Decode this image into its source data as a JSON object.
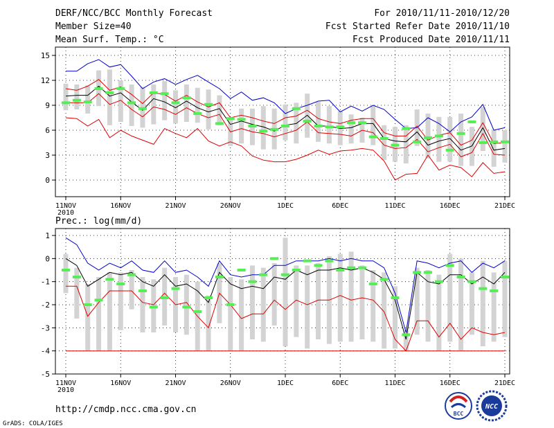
{
  "header": {
    "title_left": "DERF/NCC/BCC Monthly Forecast",
    "member_size": "Member Size=40",
    "variable": "Mean Surf. Temp.: °C",
    "period": "For 2010/11/11-2010/12/20",
    "started": "Fcst Started Refer Date 2010/11/10",
    "produced": "Fcst Produced Date 2010/11/11"
  },
  "footer": {
    "url": "http://cmdp.ncc.cma.gov.cn",
    "credit": "GrADS: COLA/IGES",
    "logo_bcc_text": "BCC",
    "logo_ncc_text": "NCC"
  },
  "colors": {
    "box": "#d3d3d3",
    "median": "#55ee55",
    "mean": "#000000",
    "max_line": "#0000cc",
    "min_line": "#dd0000",
    "frame": "#000000",
    "grid": "#000000"
  },
  "chart_data": [
    {
      "type": "box",
      "title": "Mean Surf. Temp.: °C",
      "x_tick_labels": [
        "11NOV",
        "16NOV",
        "21NOV",
        "26NOV",
        "1DEC",
        "6DEC",
        "11DEC",
        "16DEC",
        "21DEC"
      ],
      "x_tick_day_index": [
        0,
        5,
        10,
        15,
        20,
        25,
        30,
        35,
        40
      ],
      "year_label": "2010",
      "ylim": [
        -2,
        16
      ],
      "yticks": [
        0,
        3,
        6,
        9,
        12,
        15
      ],
      "grid": true,
      "series": [
        {
          "name": "max",
          "values": [
            13.1,
            13.1,
            14.0,
            14.5,
            13.6,
            13.9,
            12.5,
            11.0,
            11.8,
            12.2,
            11.5,
            12.1,
            12.6,
            11.8,
            11.0,
            9.8,
            10.6,
            9.6,
            9.9,
            9.3,
            8.0,
            8.6,
            9.0,
            9.5,
            9.6,
            8.2,
            8.9,
            8.3,
            9.0,
            8.5,
            7.3,
            6.2,
            6.3,
            7.5,
            6.8,
            5.8,
            7.0,
            7.6,
            9.1,
            6.0,
            6.3
          ]
        },
        {
          "name": "mean_plus",
          "values": [
            11.0,
            10.8,
            11.3,
            12.1,
            10.8,
            11.2,
            10.3,
            9.2,
            10.5,
            10.3,
            9.5,
            10.2,
            9.4,
            8.8,
            9.3,
            7.5,
            7.8,
            7.5,
            7.1,
            6.8,
            7.5,
            7.7,
            8.4,
            7.4,
            7.0,
            6.8,
            7.2,
            7.4,
            7.4,
            5.7,
            5.3,
            5.3,
            6.5,
            4.8,
            5.4,
            5.7,
            4.2,
            4.8,
            6.9,
            4.4,
            4.5
          ]
        },
        {
          "name": "mean",
          "values": [
            10.1,
            10.2,
            10.2,
            11.3,
            10.1,
            10.5,
            9.4,
            8.4,
            9.8,
            9.4,
            8.7,
            9.5,
            8.7,
            8.2,
            8.6,
            6.7,
            7.1,
            6.7,
            6.4,
            5.9,
            6.6,
            6.8,
            7.8,
            6.5,
            6.5,
            6.2,
            6.3,
            6.8,
            6.8,
            5.0,
            4.7,
            4.6,
            5.8,
            4.2,
            4.7,
            5.0,
            3.6,
            4.1,
            6.3,
            3.6,
            3.8
          ]
        },
        {
          "name": "mean_minus",
          "values": [
            9.3,
            9.3,
            9.3,
            10.4,
            9.1,
            9.6,
            8.5,
            7.6,
            8.8,
            8.5,
            7.9,
            8.7,
            8.0,
            7.5,
            7.9,
            5.8,
            6.2,
            5.8,
            5.6,
            5.2,
            5.6,
            6.0,
            7.0,
            5.7,
            5.6,
            5.5,
            5.3,
            6.0,
            5.7,
            4.2,
            3.8,
            3.9,
            4.9,
            3.4,
            3.9,
            4.3,
            2.8,
            3.3,
            5.6,
            3.1,
            3.0
          ]
        },
        {
          "name": "min",
          "values": [
            7.5,
            7.4,
            6.5,
            7.3,
            5.1,
            6.0,
            5.3,
            4.8,
            4.3,
            6.2,
            5.6,
            5.1,
            6.2,
            4.7,
            4.1,
            4.6,
            4.1,
            2.9,
            2.4,
            2.2,
            2.2,
            2.5,
            3.0,
            3.6,
            3.1,
            3.5,
            3.6,
            3.8,
            3.6,
            2.3,
            0.0,
            0.7,
            0.8,
            3.0,
            1.2,
            1.8,
            1.5,
            0.4,
            2.1,
            0.8,
            1.0
          ]
        },
        {
          "name": "median",
          "values": [
            9.3,
            9.6,
            9.4,
            11.0,
            10.5,
            11.0,
            9.3,
            8.6,
            10.5,
            10.4,
            9.3,
            9.9,
            8.0,
            9.1,
            6.8,
            7.4,
            7.3,
            6.5,
            5.9,
            6.1,
            6.5,
            8.6,
            7.1,
            6.5,
            6.4,
            6.4,
            6.9,
            6.9,
            5.2,
            5.0,
            4.2,
            6.2,
            4.6,
            5.1,
            5.3,
            3.6,
            5.6,
            7.0,
            4.5,
            4.6,
            4.6
          ]
        },
        {
          "name": "box_q3",
          "values": [
            11.6,
            11.5,
            11.4,
            13.2,
            13.3,
            12.0,
            11.5,
            11.2,
            11.5,
            11.9,
            10.8,
            11.5,
            11.1,
            10.9,
            10.2,
            7.3,
            8.6,
            8.6,
            8.9,
            8.6,
            9.1,
            9.3,
            10.4,
            9.4,
            8.9,
            8.3,
            7.9,
            7.5,
            9.0,
            6.6,
            6.4,
            6.6,
            8.5,
            8.0,
            7.6,
            7.6,
            8.0,
            6.4,
            8.8,
            6.0,
            6.0
          ]
        },
        {
          "name": "box_q1",
          "values": [
            8.4,
            8.5,
            8.0,
            8.9,
            6.6,
            7.0,
            6.5,
            6.3,
            6.7,
            7.2,
            6.8,
            7.0,
            6.9,
            6.1,
            6.6,
            4.1,
            4.4,
            4.2,
            3.7,
            3.7,
            4.8,
            4.4,
            5.1,
            4.6,
            4.4,
            4.2,
            4.4,
            4.5,
            4.2,
            2.4,
            2.2,
            2.0,
            4.1,
            2.6,
            2.2,
            2.2,
            1.7,
            1.7,
            3.5,
            1.6,
            2.1
          ]
        }
      ]
    },
    {
      "type": "box",
      "title": "Prec.: log(mm/d)",
      "x_tick_labels": [
        "11NOV",
        "16NOV",
        "21NOV",
        "26NOV",
        "1DEC",
        "6DEC",
        "11DEC",
        "16DEC",
        "21DEC"
      ],
      "x_tick_day_index": [
        0,
        5,
        10,
        15,
        20,
        25,
        30,
        35,
        40
      ],
      "year_label": "2010",
      "ylim": [
        -5,
        1.3
      ],
      "yticks": [
        -5,
        -4,
        -3,
        -2,
        -1,
        0,
        1
      ],
      "grid": true,
      "series": [
        {
          "name": "max",
          "values": [
            0.9,
            0.6,
            -0.2,
            -0.5,
            -0.2,
            -0.4,
            -0.1,
            -0.5,
            -0.6,
            -0.1,
            -0.6,
            -0.5,
            -0.8,
            -1.2,
            -0.1,
            -0.7,
            -0.8,
            -0.7,
            -0.7,
            -0.3,
            -0.3,
            -0.1,
            -0.1,
            -0.1,
            0.0,
            -0.1,
            0.0,
            -0.1,
            -0.1,
            -0.4,
            -1.5,
            -3.2,
            -0.1,
            -0.2,
            -0.4,
            -0.2,
            -0.1,
            -0.6,
            -0.2,
            -0.4,
            -0.1
          ]
        },
        {
          "name": "mean",
          "values": [
            0.0,
            -0.3,
            -1.2,
            -0.9,
            -0.6,
            -0.7,
            -0.6,
            -1.0,
            -1.2,
            -0.7,
            -1.2,
            -1.1,
            -1.4,
            -1.9,
            -0.6,
            -1.1,
            -1.3,
            -1.2,
            -1.3,
            -0.8,
            -0.9,
            -0.5,
            -0.7,
            -0.5,
            -0.5,
            -0.4,
            -0.5,
            -0.4,
            -0.6,
            -0.9,
            -1.8,
            -3.5,
            -0.6,
            -1.0,
            -1.1,
            -0.7,
            -0.7,
            -1.1,
            -0.8,
            -1.1,
            -0.6
          ]
        },
        {
          "name": "min",
          "values": [
            -1.2,
            -1.2,
            -2.5,
            -1.9,
            -1.4,
            -1.4,
            -1.4,
            -1.9,
            -2.0,
            -1.5,
            -2.0,
            -1.9,
            -2.5,
            -3.0,
            -1.5,
            -2.0,
            -2.6,
            -2.4,
            -2.4,
            -1.8,
            -2.2,
            -1.8,
            -2.0,
            -1.8,
            -1.8,
            -1.6,
            -1.8,
            -1.7,
            -1.8,
            -2.3,
            -3.5,
            -4.0,
            -2.7,
            -2.7,
            -3.4,
            -2.8,
            -3.5,
            -3.0,
            -3.2,
            -3.3,
            -3.2
          ]
        },
        {
          "name": "floor",
          "values": [
            -4,
            -4,
            -4,
            -4,
            -4,
            -4,
            -4,
            -4,
            -4,
            -4,
            -4,
            -4,
            -4,
            -4,
            -4,
            -4,
            -4,
            -4,
            -4,
            -4,
            -4,
            -4,
            -4,
            -4,
            -4,
            -4,
            -4,
            -4,
            -4,
            -4,
            -4,
            -4,
            -4,
            -4,
            -4,
            -4,
            -4,
            -4,
            -4,
            -4,
            -4
          ]
        },
        {
          "name": "median",
          "values": [
            -0.5,
            -0.8,
            -2.0,
            -1.8,
            -0.9,
            -1.1,
            -0.7,
            -1.4,
            -2.1,
            -1.7,
            -1.3,
            -2.1,
            -2.3,
            -1.7,
            -0.8,
            -2.0,
            -0.5,
            -1.0,
            -0.7,
            0.0,
            -0.7,
            -0.5,
            -0.1,
            -0.3,
            -0.1,
            -0.5,
            -0.4,
            -0.4,
            -1.1,
            -0.9,
            -1.7,
            -3.3,
            -0.6,
            -0.6,
            -1.0,
            -0.3,
            -0.8,
            -1.0,
            -1.3,
            -1.4,
            -0.8
          ]
        },
        {
          "name": "box_q3",
          "values": [
            0.2,
            -0.4,
            -1.1,
            -0.8,
            -0.6,
            -0.6,
            -0.5,
            -0.8,
            -0.9,
            -0.4,
            -0.8,
            -0.7,
            -1.0,
            -1.6,
            -0.2,
            -0.8,
            -0.9,
            -0.3,
            -0.4,
            -0.2,
            0.9,
            -0.3,
            -0.3,
            -0.2,
            0.1,
            0.2,
            0.3,
            -0.3,
            -0.5,
            -0.6,
            -1.2,
            -3.1,
            -0.4,
            -0.5,
            -0.7,
            0.2,
            0.0,
            -0.6,
            -0.1,
            -0.6,
            -0.1
          ]
        },
        {
          "name": "box_q1",
          "values": [
            -1.5,
            -2.6,
            -4.0,
            -4.0,
            -4.0,
            -3.1,
            -2.2,
            -3.2,
            -3.2,
            -2.9,
            -3.2,
            -3.3,
            -4.0,
            -4.0,
            -2.8,
            -4.0,
            -4.0,
            -3.5,
            -3.6,
            -2.9,
            -3.8,
            -3.4,
            -3.9,
            -3.5,
            -3.7,
            -3.6,
            -3.6,
            -3.5,
            -3.6,
            -3.9,
            -3.9,
            -4.0,
            -3.3,
            -3.6,
            -4.0,
            -3.6,
            -4.0,
            -3.3,
            -3.8,
            -3.6,
            -3.4
          ]
        }
      ]
    }
  ]
}
